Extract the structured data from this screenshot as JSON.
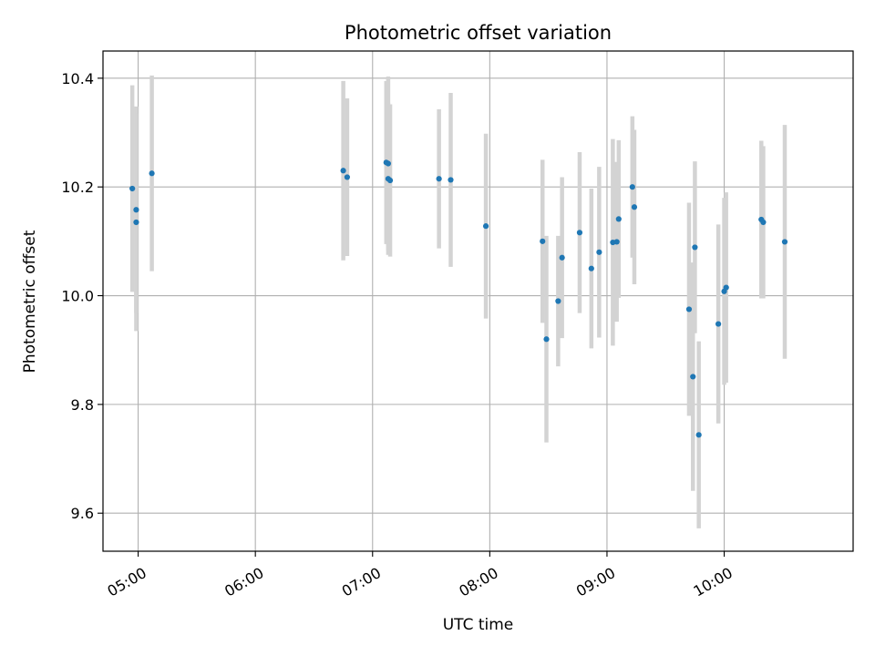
{
  "chart_data": {
    "type": "scatter",
    "title": "Photometric offset variation",
    "xlabel": "UTC time",
    "ylabel": "Photometric offset",
    "x_range": [
      "04:42",
      "11:06"
    ],
    "ylim": [
      9.53,
      10.45
    ],
    "grid": true,
    "x_ticks": [
      "05:00",
      "06:00",
      "07:00",
      "08:00",
      "09:00",
      "10:00"
    ],
    "y_ticks": [
      9.6,
      9.8,
      10.0,
      10.2,
      10.4
    ],
    "y_tick_labels": [
      "9.6",
      "9.8",
      "10.0",
      "10.2",
      "10.4"
    ],
    "colors": {
      "point": "#1f77b4",
      "errorbar": "#d3d3d3",
      "grid": "#b0b0b0"
    },
    "points": [
      {
        "x": "04:57",
        "y": 10.197,
        "err": 0.19
      },
      {
        "x": "04:59",
        "y": 10.158,
        "err": 0.19
      },
      {
        "x": "04:59",
        "y": 10.135,
        "err": 0.2
      },
      {
        "x": "05:07",
        "y": 10.225,
        "err": 0.18
      },
      {
        "x": "06:45",
        "y": 10.23,
        "err": 0.165
      },
      {
        "x": "06:47",
        "y": 10.218,
        "err": 0.145
      },
      {
        "x": "07:07",
        "y": 10.245,
        "err": 0.15
      },
      {
        "x": "07:08",
        "y": 10.243,
        "err": 0.16
      },
      {
        "x": "07:08",
        "y": 10.215,
        "err": 0.14
      },
      {
        "x": "07:09",
        "y": 10.212,
        "err": 0.14
      },
      {
        "x": "07:34",
        "y": 10.215,
        "err": 0.128
      },
      {
        "x": "07:40",
        "y": 10.213,
        "err": 0.16
      },
      {
        "x": "07:58",
        "y": 10.128,
        "err": 0.17
      },
      {
        "x": "08:27",
        "y": 10.1,
        "err": 0.15
      },
      {
        "x": "08:29",
        "y": 9.92,
        "err": 0.19
      },
      {
        "x": "08:35",
        "y": 9.99,
        "err": 0.12
      },
      {
        "x": "08:37",
        "y": 10.07,
        "err": 0.148
      },
      {
        "x": "08:46",
        "y": 10.116,
        "err": 0.148
      },
      {
        "x": "08:52",
        "y": 10.05,
        "err": 0.147
      },
      {
        "x": "08:56",
        "y": 10.08,
        "err": 0.157
      },
      {
        "x": "09:03",
        "y": 10.098,
        "err": 0.19
      },
      {
        "x": "09:05",
        "y": 10.099,
        "err": 0.147
      },
      {
        "x": "09:06",
        "y": 10.141,
        "err": 0.145
      },
      {
        "x": "09:13",
        "y": 10.2,
        "err": 0.13
      },
      {
        "x": "09:14",
        "y": 10.163,
        "err": 0.142
      },
      {
        "x": "09:42",
        "y": 9.975,
        "err": 0.196
      },
      {
        "x": "09:44",
        "y": 9.851,
        "err": 0.21
      },
      {
        "x": "09:45",
        "y": 10.089,
        "err": 0.158
      },
      {
        "x": "09:47",
        "y": 9.744,
        "err": 0.172
      },
      {
        "x": "09:57",
        "y": 9.948,
        "err": 0.183
      },
      {
        "x": "10:00",
        "y": 10.008,
        "err": 0.172
      },
      {
        "x": "10:01",
        "y": 10.015,
        "err": 0.175
      },
      {
        "x": "10:19",
        "y": 10.14,
        "err": 0.145
      },
      {
        "x": "10:20",
        "y": 10.135,
        "err": 0.14
      },
      {
        "x": "10:31",
        "y": 10.099,
        "err": 0.215
      }
    ]
  }
}
